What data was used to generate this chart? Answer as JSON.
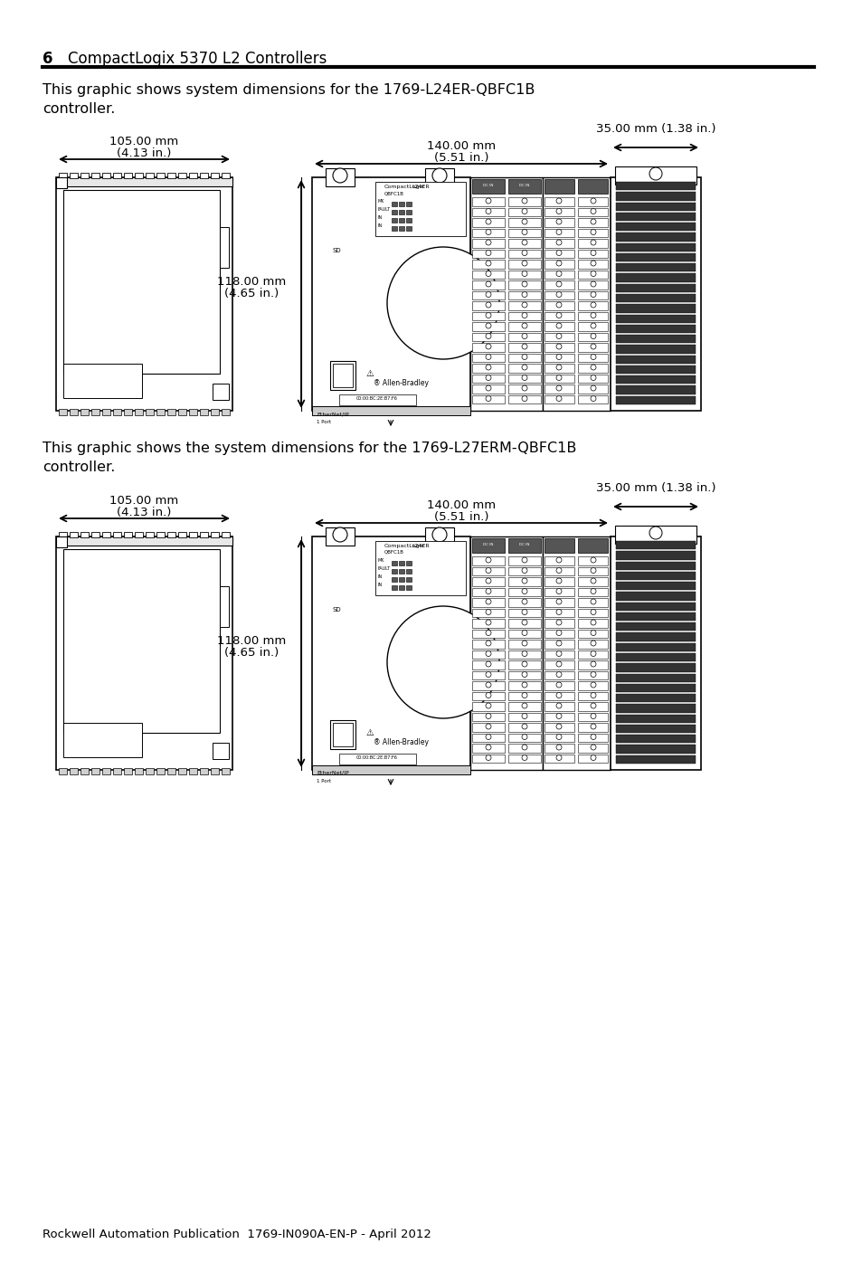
{
  "bg_color": "#ffffff",
  "page_number": "6",
  "header_title": "CompactLogix 5370 L2 Controllers",
  "footer_text": "Rockwell Automation Publication  1769-IN090A-EN-P - April 2012",
  "section1_text_line1": "This graphic shows system dimensions for the 1769-L24ER-QBFC1B",
  "section1_text_line2": "controller.",
  "section2_text_line1": "This graphic shows the system dimensions for the 1769-L27ERM-QBFC1B",
  "section2_text_line2": "controller.",
  "dim_105mm": "105.00 mm",
  "dim_105in": "(4.13 in.)",
  "dim_140mm": "140.00 mm",
  "dim_140in": "(5.51 in.)",
  "dim_118mm": "118.00 mm",
  "dim_118in": "(4.65 in.)",
  "dim_35mm": "35.00 mm (1.38 in.)"
}
